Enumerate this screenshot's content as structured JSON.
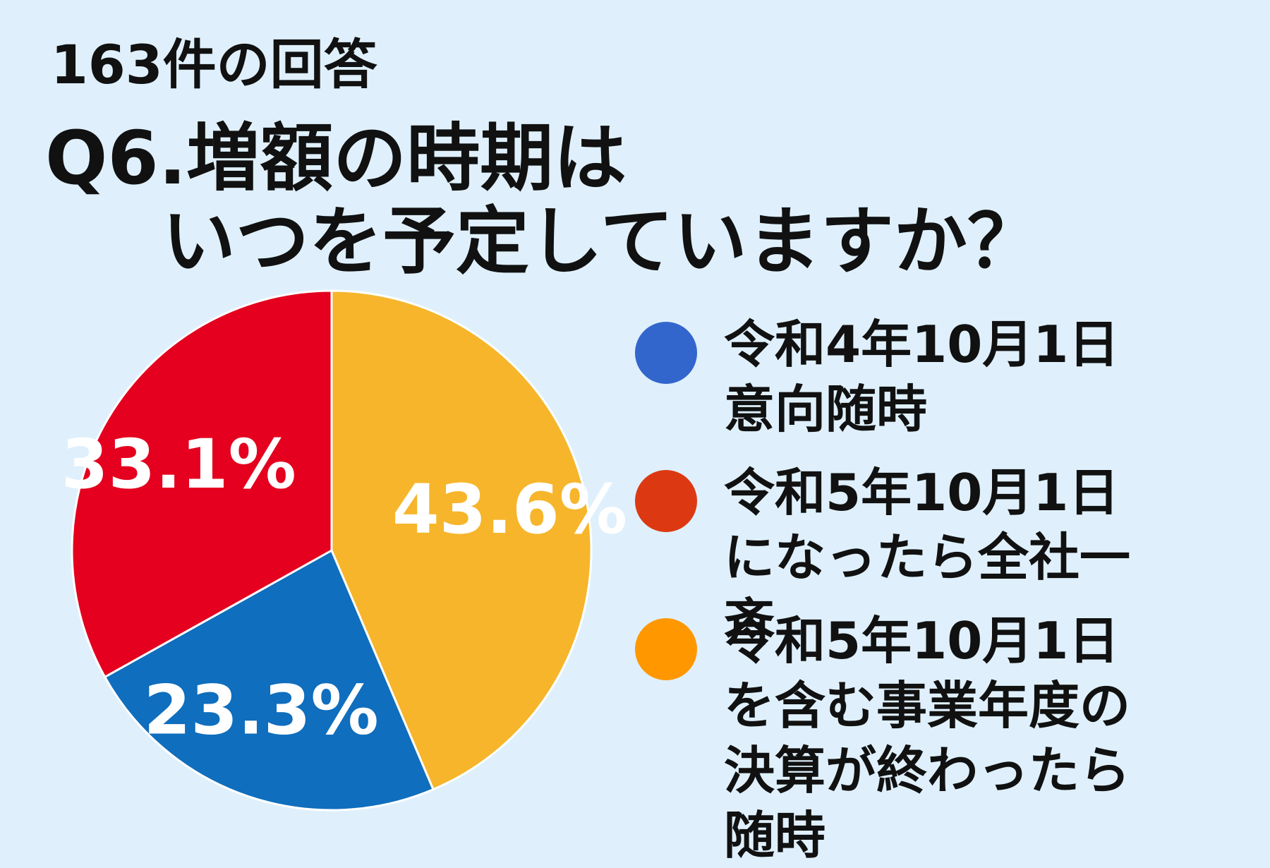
{
  "header": {
    "response_count": "163件の回答",
    "question_line1": "Q6.増額の時期は",
    "question_line2": "いつを予定していますか？"
  },
  "chart_data": {
    "type": "pie",
    "title": "Q6.増額の時期はいつを予定していますか？",
    "subtitle": "163件の回答",
    "slices": [
      {
        "label": "令和5年10月1日を含む事業年度の決算が終わったら随時",
        "value": 43.6,
        "display": "43.6%",
        "color": "#f6b52b",
        "legend_color": "#ff9800"
      },
      {
        "label": "令和4年10月1日意向随時",
        "value": 23.3,
        "display": "23.3%",
        "color": "#0f6ebd",
        "legend_color": "#3366cc"
      },
      {
        "label": "令和5年10月1日になったら全社一斉",
        "value": 33.1,
        "display": "33.1%",
        "color": "#e4001e",
        "legend_color": "#dc3912"
      }
    ],
    "legend": {
      "placement": "right",
      "items": [
        {
          "label": "令和4年10月1日意向随時",
          "color": "#3366cc"
        },
        {
          "label": "令和5年10月1日になったら全社一斉",
          "color": "#dc3912"
        },
        {
          "label": "令和5年10月1日を含む事業年度の決算が終わったら随時",
          "color": "#ff9800"
        }
      ]
    },
    "label_color": "#ffffff"
  }
}
